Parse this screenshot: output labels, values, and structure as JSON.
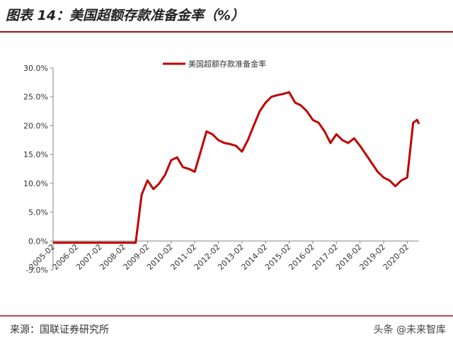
{
  "chart_data": {
    "type": "line",
    "title": "图表 14：美国超额存款准备金率（%）",
    "x": [
      "2005-02",
      "2005-05",
      "2005-08",
      "2005-11",
      "2006-02",
      "2006-05",
      "2006-08",
      "2006-11",
      "2007-02",
      "2007-05",
      "2007-08",
      "2007-11",
      "2008-02",
      "2008-05",
      "2008-08",
      "2008-11",
      "2009-02",
      "2009-05",
      "2009-08",
      "2009-11",
      "2010-02",
      "2010-05",
      "2010-08",
      "2010-11",
      "2011-02",
      "2011-05",
      "2011-08",
      "2011-11",
      "2012-02",
      "2012-05",
      "2012-08",
      "2012-11",
      "2013-02",
      "2013-05",
      "2013-08",
      "2013-11",
      "2014-02",
      "2014-05",
      "2014-08",
      "2014-11",
      "2015-02",
      "2015-05",
      "2015-08",
      "2015-11",
      "2016-02",
      "2016-05",
      "2016-08",
      "2016-11",
      "2017-02",
      "2017-05",
      "2017-08",
      "2017-11",
      "2018-02",
      "2018-05",
      "2018-08",
      "2018-11",
      "2019-02",
      "2019-05",
      "2019-08",
      "2019-11",
      "2020-02",
      "2020-05",
      "2020-07",
      "2020-08"
    ],
    "series": [
      {
        "name": "美国超额存款准备金率",
        "color": "#c00000",
        "values": [
          -0.3,
          -0.3,
          -0.3,
          -0.3,
          -0.3,
          -0.3,
          -0.3,
          -0.3,
          -0.3,
          -0.3,
          -0.3,
          -0.3,
          -0.3,
          -0.3,
          -0.3,
          8,
          10.5,
          9,
          10,
          11.5,
          14,
          14.5,
          12.8,
          12.5,
          12,
          15.5,
          19,
          18.5,
          17.5,
          17,
          16.8,
          16.5,
          15.5,
          17.5,
          20,
          22.5,
          24,
          25,
          25.3,
          25.5,
          25.8,
          24,
          23.5,
          22.5,
          21,
          20.5,
          19,
          17,
          18.5,
          17.5,
          17,
          17.8,
          16.5,
          15,
          13.5,
          12,
          11,
          10.5,
          9.5,
          10.5,
          11,
          20.5,
          21,
          20.3
        ]
      }
    ],
    "xlim": [
      "2005-02",
      "2020-08"
    ],
    "xticks": [
      "2005-02",
      "2006-02",
      "2007-02",
      "2008-02",
      "2009-02",
      "2010-02",
      "2011-02",
      "2012-02",
      "2013-02",
      "2014-02",
      "2015-02",
      "2016-02",
      "2017-02",
      "2018-02",
      "2019-02",
      "2020-02"
    ],
    "ylim": [
      -5,
      30
    ],
    "yticks": [
      {
        "value": -5,
        "label": "-5.0%"
      },
      {
        "value": 0,
        "label": "0.0%"
      },
      {
        "value": 5,
        "label": "5.0%"
      },
      {
        "value": 10,
        "label": "10.0%"
      },
      {
        "value": 15,
        "label": "15.0%"
      },
      {
        "value": 20,
        "label": "20.0%"
      },
      {
        "value": 25,
        "label": "25.0%"
      },
      {
        "value": 30,
        "label": "30.0%"
      }
    ],
    "legend": "top"
  },
  "source": "来源：国联证券研究所",
  "watermark": "头条 @未来智库"
}
